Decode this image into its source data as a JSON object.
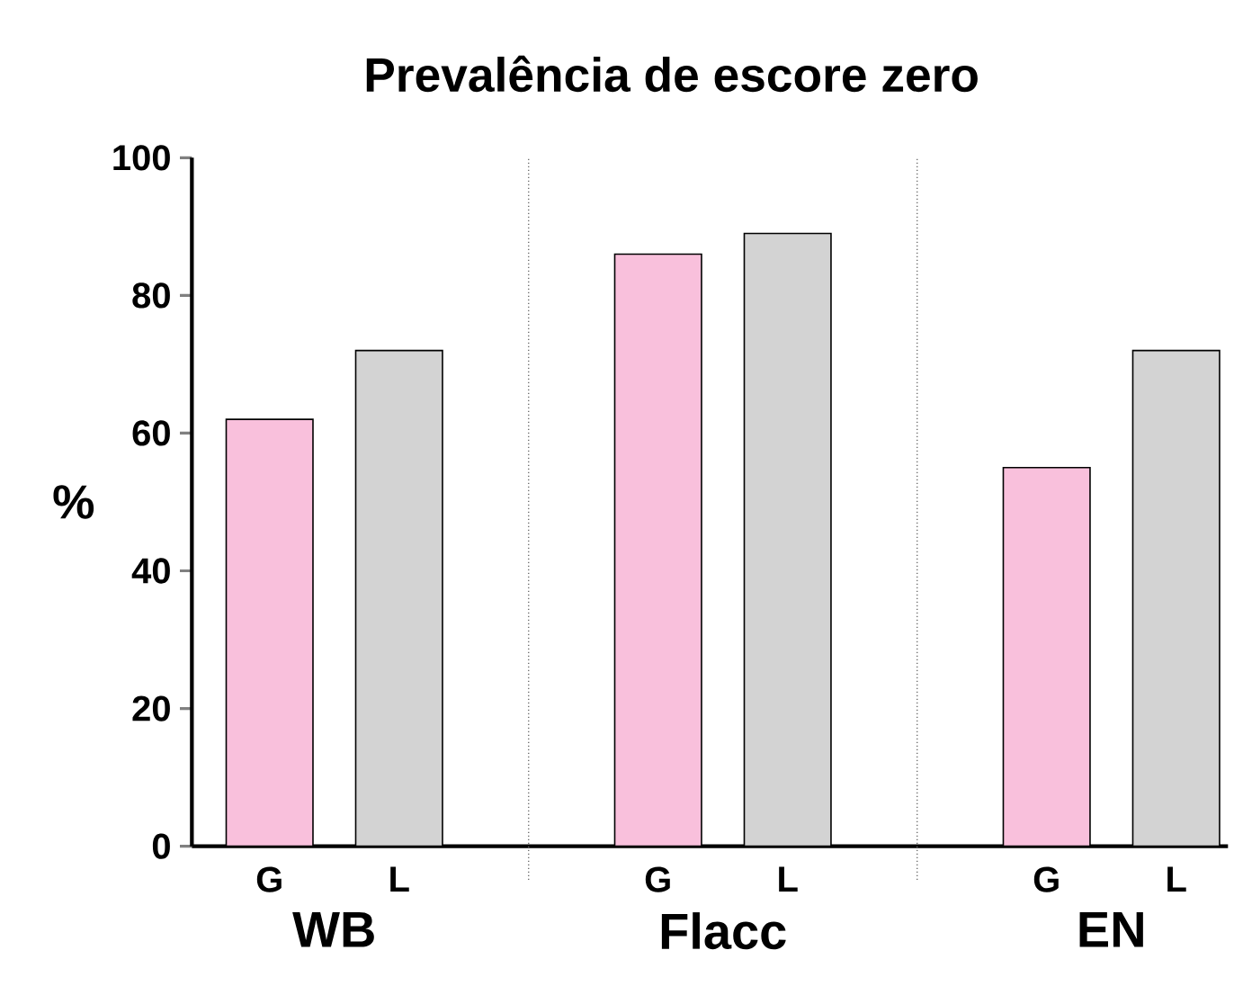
{
  "chart_data": {
    "type": "bar",
    "title": "Prevalência de escore zero",
    "ylabel": "%",
    "categories": [
      "G",
      "L",
      null,
      "G",
      "L",
      null,
      "G",
      "L"
    ],
    "values": [
      62,
      72,
      null,
      86,
      89,
      null,
      55,
      72
    ],
    "colors": [
      "#f9c0dc",
      "#d3d3d3",
      null,
      "#f9c0dc",
      "#d3d3d3",
      null,
      "#f9c0dc",
      "#d3d3d3"
    ],
    "ylim": [
      0,
      100
    ],
    "yticks": [
      0,
      20,
      40,
      60,
      80,
      100
    ],
    "annotations": [
      "WB",
      "Flacc",
      "EN"
    ]
  }
}
